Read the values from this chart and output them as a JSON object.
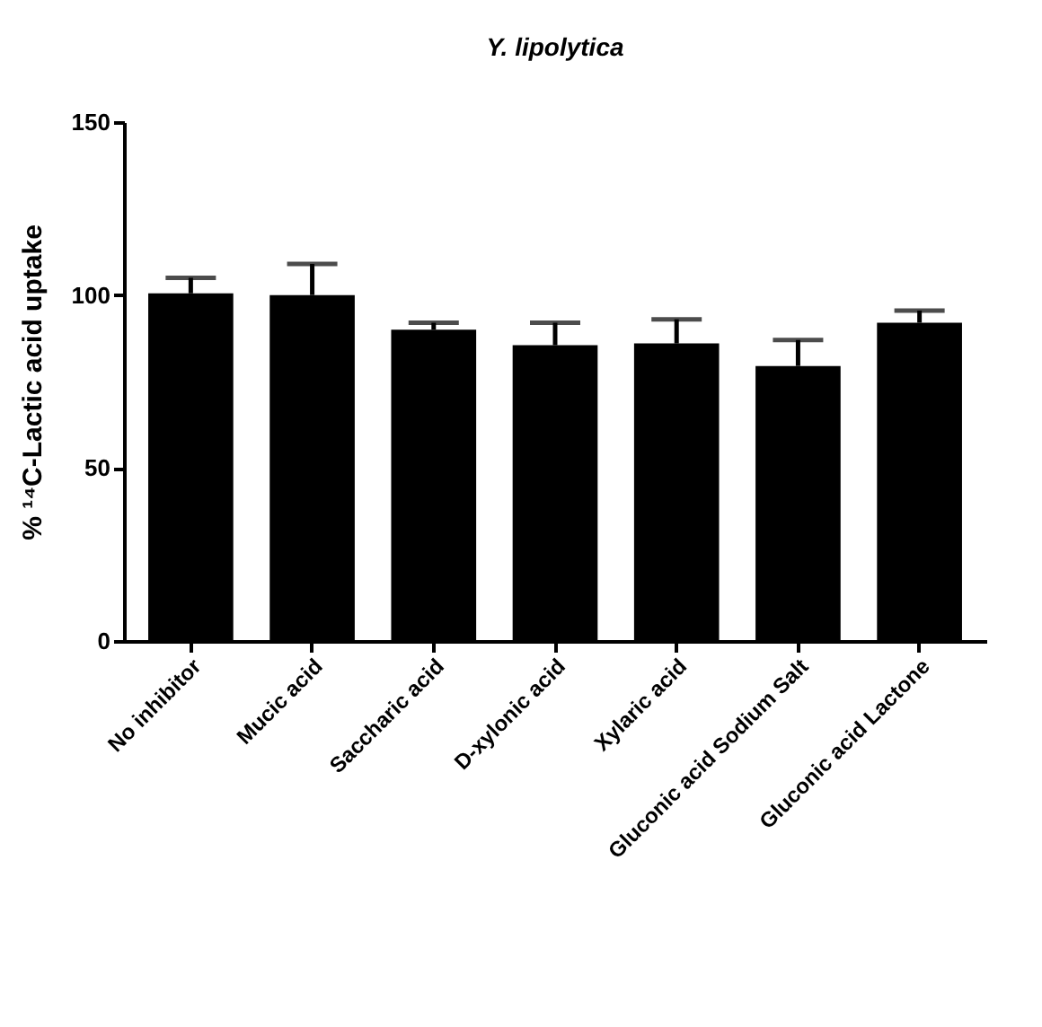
{
  "chart_data": {
    "type": "bar",
    "title": "Y. lipolytica",
    "ylabel": "% ¹⁴C-Lactic acid uptake",
    "categories": [
      "No inhibitor",
      "Mucic acid",
      "Saccharic acid",
      "D-xylonic acid",
      "Xylaric acid",
      "Gluconic acid Sodium Salt",
      "Gluconic acid Lactone"
    ],
    "values": [
      100.5,
      100,
      90,
      85.5,
      86,
      79.5,
      92
    ],
    "errors": [
      [
        100.5,
        105
      ],
      [
        100,
        109
      ],
      [
        90,
        92
      ],
      [
        85.5,
        92
      ],
      [
        86,
        93
      ],
      [
        79.5,
        87
      ],
      [
        92,
        95.5
      ]
    ],
    "color": "#000000",
    "ylim": [
      0,
      150
    ],
    "yticks": [
      0,
      50,
      100,
      150
    ],
    "grid": false
  }
}
